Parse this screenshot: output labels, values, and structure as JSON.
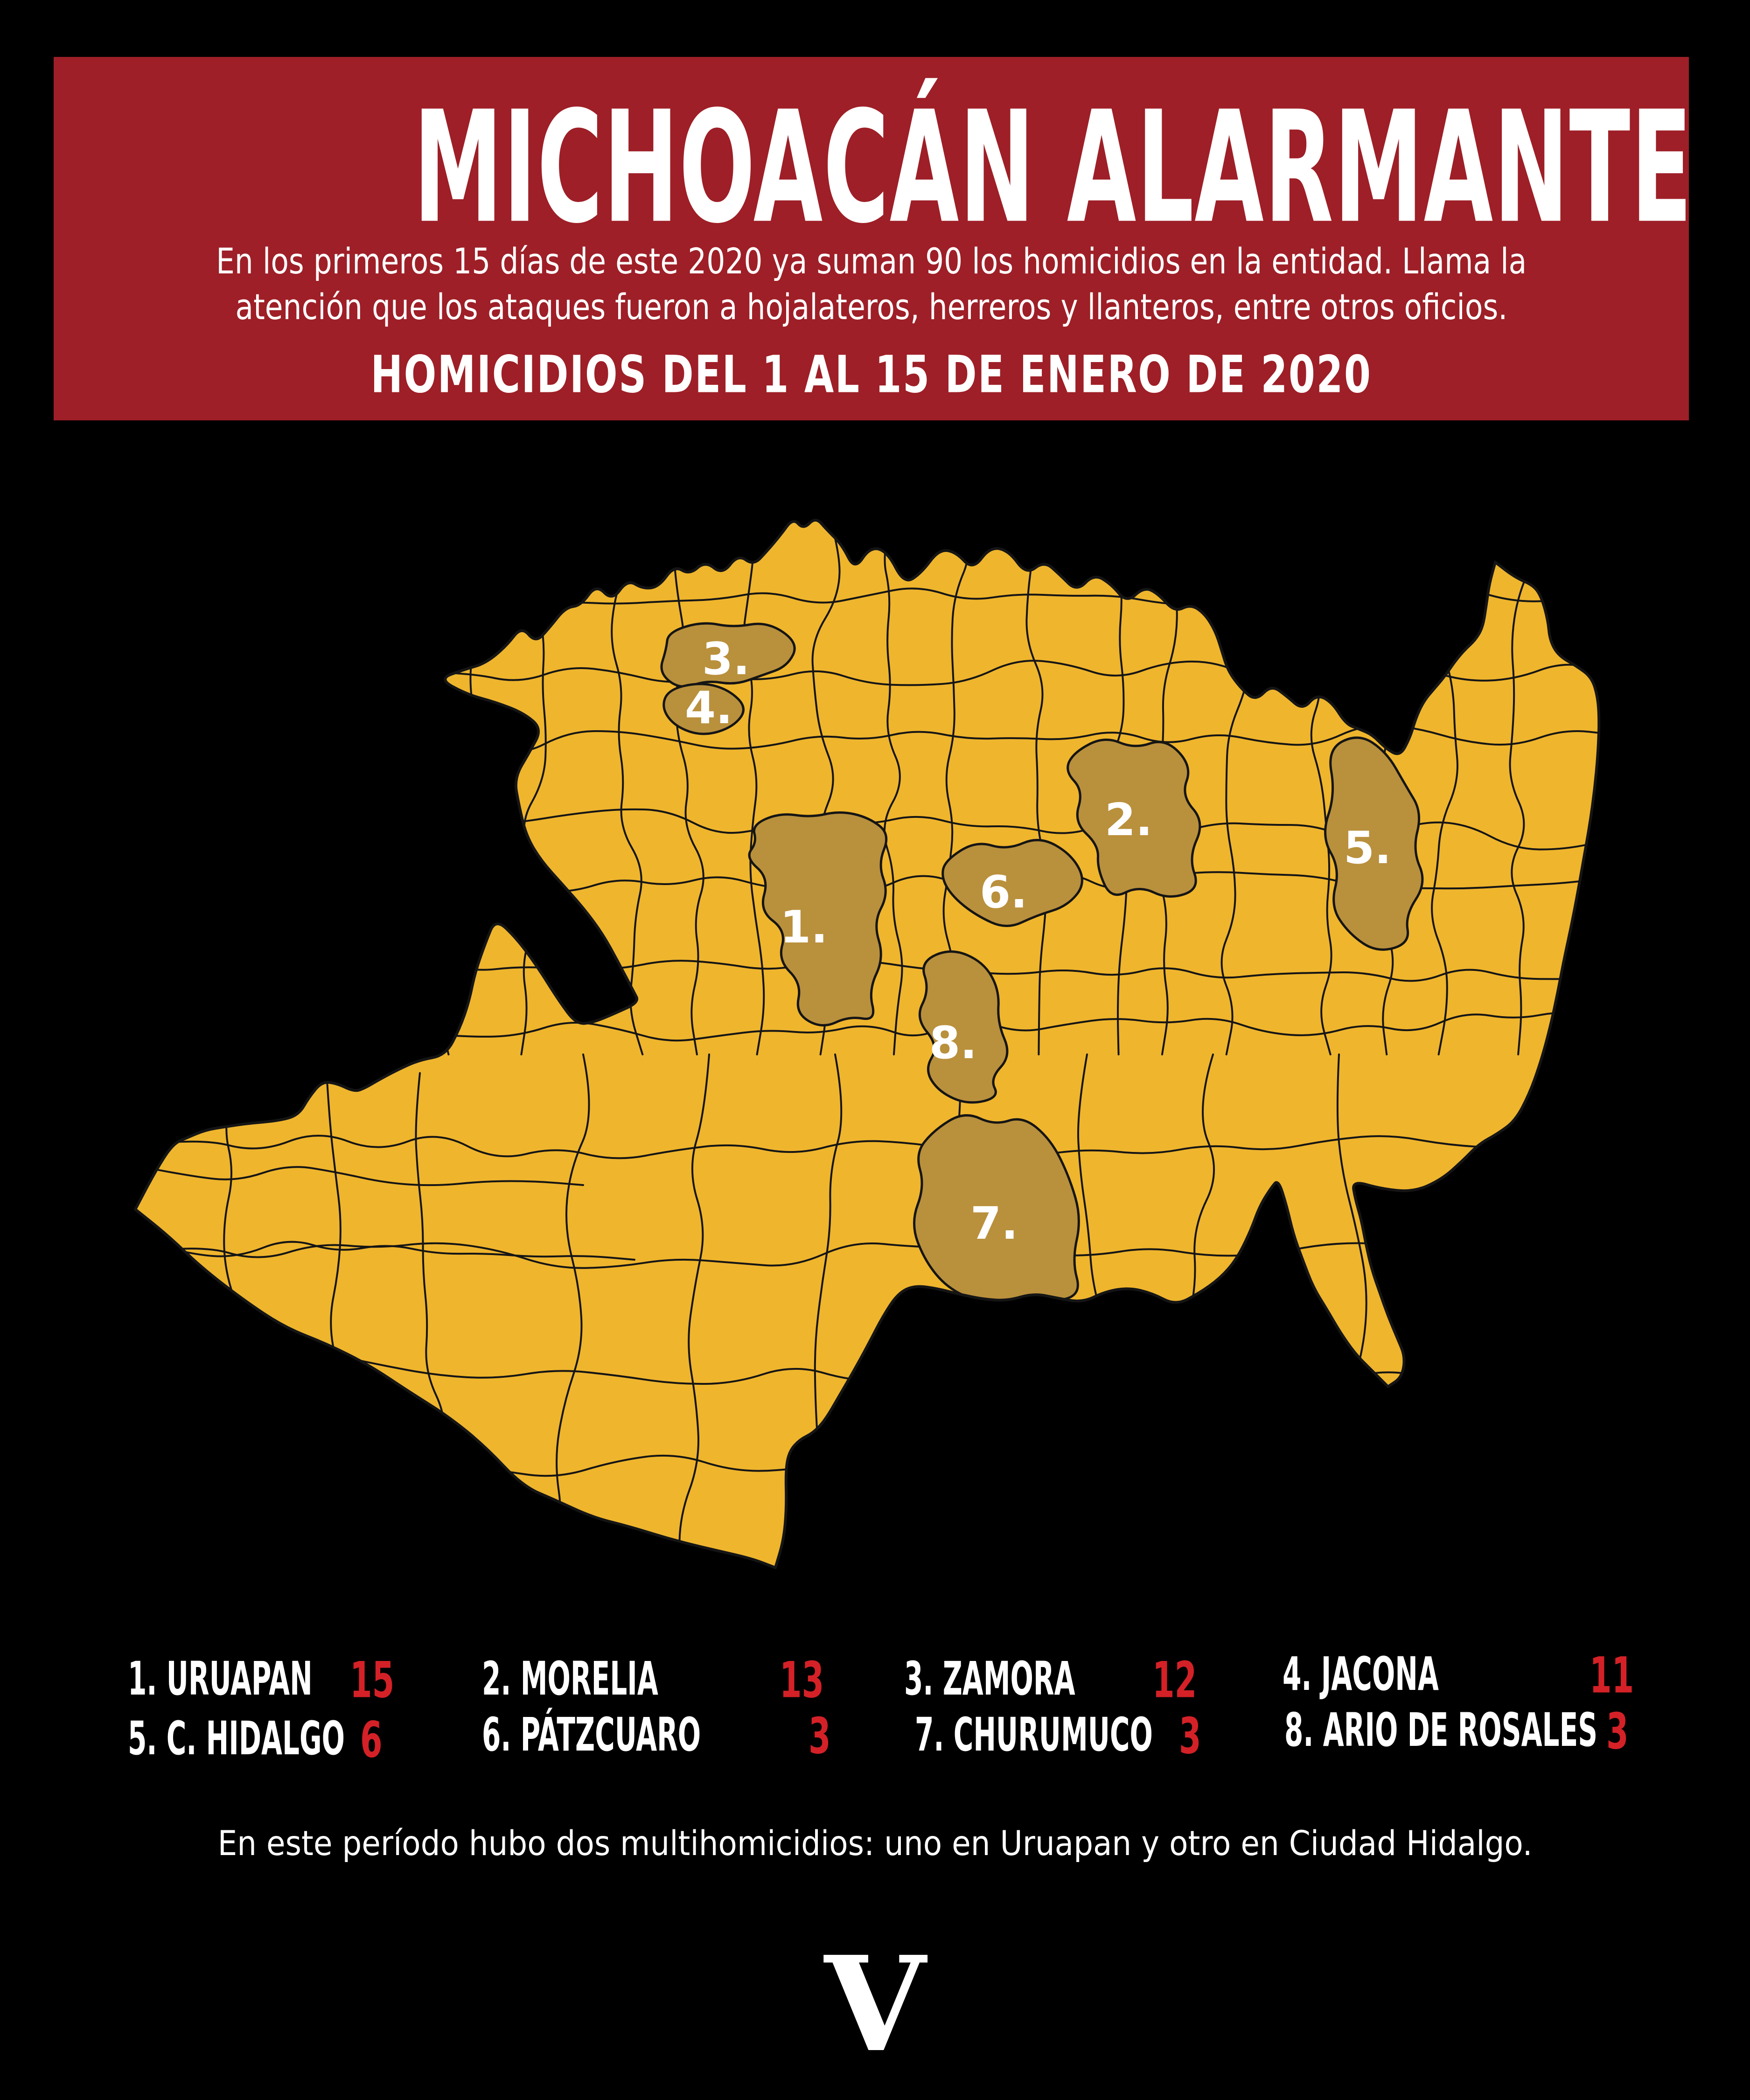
{
  "header": {
    "title": "MICHOACÁN ALARMANTE",
    "subtitle_line1": "En los primeros 15 días de este 2020 ya suman 90 los homicidios en la entidad. Llama la",
    "subtitle_line2": "atención que los ataques fueron a hojalateros, herreros y llanteros, entre otros oficios.",
    "section_heading": "HOMICIDIOS DEL 1 AL 15 DE ENERO DE 2020"
  },
  "map": {
    "state_name": "Michoacán",
    "markers": [
      {
        "label": "1."
      },
      {
        "label": "2."
      },
      {
        "label": "3."
      },
      {
        "label": "4."
      },
      {
        "label": "5."
      },
      {
        "label": "6."
      },
      {
        "label": "7."
      },
      {
        "label": "8."
      }
    ]
  },
  "legend": {
    "items": [
      {
        "label": "1. URUAPAN",
        "value": "15"
      },
      {
        "label": "2. MORELIA",
        "value": "13"
      },
      {
        "label": "3. ZAMORA",
        "value": "12"
      },
      {
        "label": "4. JACONA",
        "value": "11"
      },
      {
        "label": "5. C. HIDALGO",
        "value": "6"
      },
      {
        "label": "6. PÁTZCUARO",
        "value": "3"
      },
      {
        "label": "7. CHURUMUCO",
        "value": "3"
      },
      {
        "label": "8. ARIO DE ROSALES",
        "value": "3"
      }
    ]
  },
  "footer": {
    "note": "En este período hubo dos multihomicidios: uno en Uruapan y otro en Ciudad Hidalgo.",
    "logo_letter": "V"
  },
  "colors": {
    "background": "#000000",
    "band": "#9E1F27",
    "accent_red": "#D42127",
    "map_fill": "#EFB52D",
    "map_highlight": "#B9903C",
    "map_border": "#151515",
    "text": "#FFFFFF"
  }
}
